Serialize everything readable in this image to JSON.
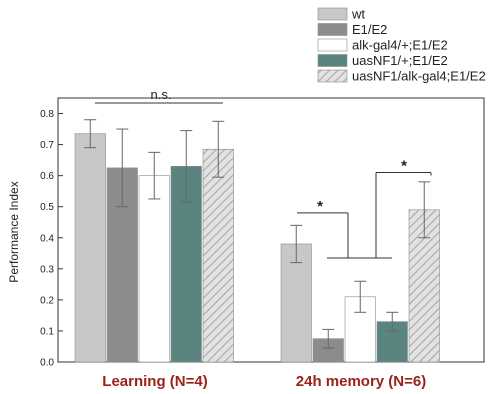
{
  "chart_data": {
    "type": "bar",
    "title": "",
    "xlabel": "",
    "ylabel": "Performance Index",
    "ylim": [
      0.0,
      0.85
    ],
    "yticks": [
      "0.0",
      "0.1",
      "0.2",
      "0.3",
      "0.4",
      "0.5",
      "0.6",
      "0.7",
      "0.8"
    ],
    "grid": false,
    "legend_position": "top-right",
    "categories": [
      "Learning (N=4)",
      "24h memory (N=6)"
    ],
    "series": [
      {
        "name": "wt",
        "values": [
          0.735,
          0.38
        ],
        "errors": [
          0.045,
          0.06
        ],
        "color": "#c8c8c8",
        "pattern": "solid"
      },
      {
        "name": "E1/E2",
        "values": [
          0.625,
          0.075
        ],
        "errors": [
          0.125,
          0.03
        ],
        "color": "#8c8c8c",
        "pattern": "solid"
      },
      {
        "name": "alk-gal4/+;E1/E2",
        "values": [
          0.6,
          0.21
        ],
        "errors": [
          0.075,
          0.05
        ],
        "color": "#ffffff",
        "pattern": "solid"
      },
      {
        "name": "uasNF1/+;E1/E2",
        "values": [
          0.63,
          0.13
        ],
        "errors": [
          0.115,
          0.03
        ],
        "color": "#5a8480",
        "pattern": "solid"
      },
      {
        "name": "uasNF1/alk-gal4;E1/E2",
        "values": [
          0.685,
          0.49
        ],
        "errors": [
          0.09,
          0.09
        ],
        "color": "#d0d0d0",
        "pattern": "hatched"
      }
    ],
    "annotations": [
      {
        "text": "n.s.",
        "group": "Learning (N=4)"
      },
      {
        "text": "*",
        "group": "24h memory (N=6)"
      },
      {
        "text": "*",
        "group": "24h memory (N=6)"
      }
    ]
  }
}
